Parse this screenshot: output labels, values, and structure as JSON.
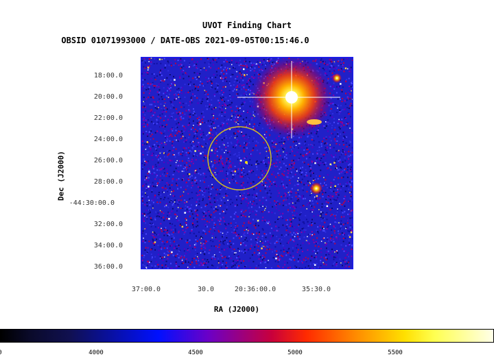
{
  "chart": {
    "title": "UVOT Finding Chart",
    "subtitle": "OBSID 01071993000 / DATE-OBS 2021-09-05T00:15:46.0",
    "ylabel": "Dec (J2000)",
    "xlabel": "RA (J2000)",
    "dec_ticks": [
      "18:00.0",
      "20:00.0",
      "22:00.0",
      "24:00.0",
      "26:00.0",
      "28:00.0",
      "-44:30:00.0",
      "32:00.0",
      "34:00.0",
      "36:00.0"
    ],
    "ra_ticks": [
      "37:00.0",
      "30.0",
      "20:36:00.0",
      "35:30.0"
    ],
    "colorbar_ticks": [
      "0",
      "4000",
      "4500",
      "5000",
      "5500"
    ]
  },
  "colors": {
    "circle": "#d4c020",
    "frame": "#1a1aff",
    "background_noise": "#1e1ec8"
  }
}
